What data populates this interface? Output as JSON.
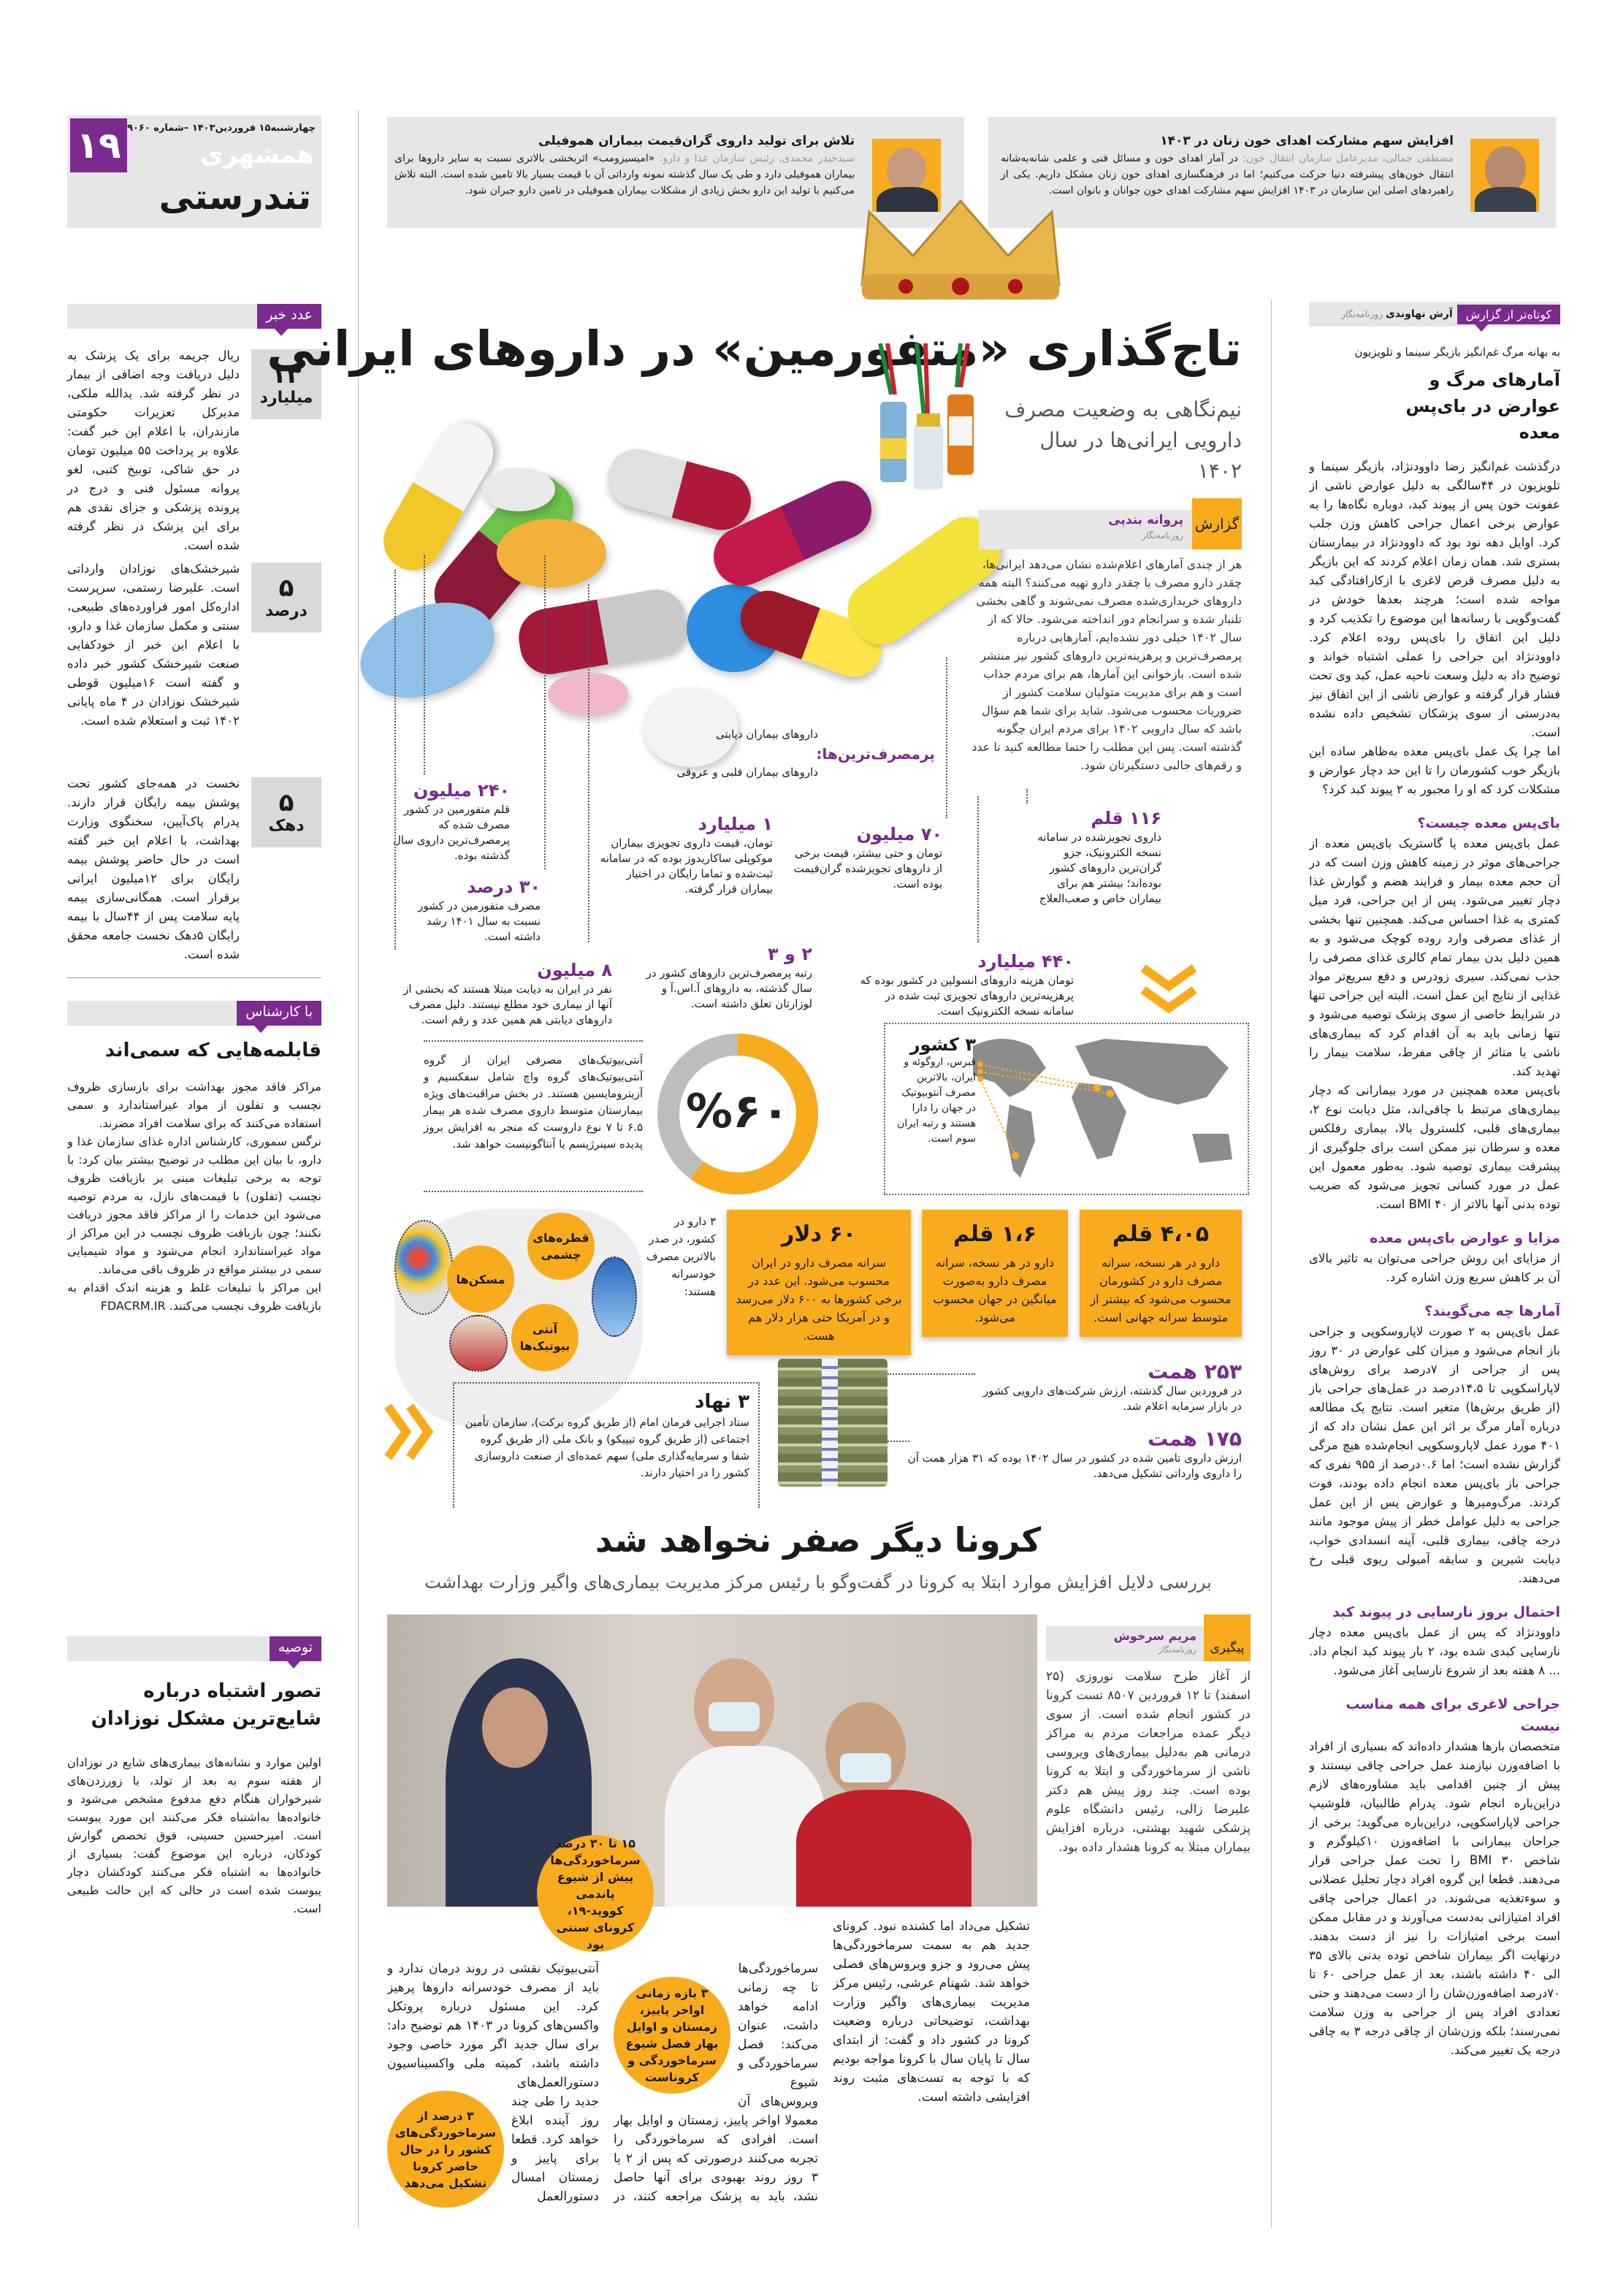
{
  "header": {
    "page_number": "۱۹",
    "date_issue": "چهارشنبه۱۵ فروردین۱۴۰۳ –شماره ۹۰۶۰",
    "logo": "همشهری",
    "section": "تندرستی",
    "accent_purple": "#7b2a8e",
    "accent_orange": "#f8ab1c"
  },
  "quotes": [
    {
      "title": "تلاش برای تولید داروی گران‌قیمت بیماران هموفیلی",
      "speaker": "سیدحیدر محمدی، رئیس سازمان غذا و دارو:",
      "text": "«امیسیزومب» اثربخشی بالاتری نسبت به سایر داروها برای بیماران هموفیلی دارد و طی یک سال گذشته نمونه وارداتی آن با قیمت بسیار بالا تامین شده است. البته تلاش می‌کنیم با تولید این دارو بخش زیادی از مشکلات بیماران هموفیلی در تامین دارو جبران شود."
    },
    {
      "title": "افزایش سهم مشارکت اهدای خون زنان در ۱۴۰۳",
      "speaker": "مصطفی جمالی، مدیرعامل سازمان انتقال خون:",
      "text": "در آمار اهدای خون و مسائل فنی و علمی شانه‌به‌شانه انتقال خون‌های پیشرفته دنیا حرکت می‌کنیم؛ اما در فرهنگسازی اهدای خون زنان مشکل داریم. یکی از راهبردهای اصلی این سازمان در ۱۴۰۳ افزایش سهم مشارکت اهدای خون جوانان و بانوان است."
    }
  ],
  "left": {
    "numbers_label": "عدد خبر",
    "numbers": [
      {
        "num": "۱۳",
        "unit": "میلیارد",
        "text": "ریال جریمه برای یک پزشک به دلیل دریافت وجه اضافی از بیمار در نظر گرفته شد. یدالله ملکی، مدیرکل تعزیرات حکومتی مازندران، با اعلام این خبر گفت: علاوه بر پرداخت ۵۵ میلیون تومان در حق شاکی، توبیخ کتبی، لغو پروانه مسئول فنی و درج در پرونده پزشکی و جزای نقدی هم برای این پزشک در نظر گرفته شده است."
      },
      {
        "num": "۵",
        "unit": "درصد",
        "text": "شیرخشک‌های نوزادان وارداتی است. علیرضا رستمی، سرپرست اداره‌کل امور فراورده‌های طبیعی، سنتی و مکمل سازمان غذا و دارو، با اعلام این خبر از خودکفایی صنعت شیرخشک کشور خبر داده و گفته است ۱۶میلیون قوطی شیرخشک نوزادان در ۴ ماه پایانی ۱۴۰۲ ثبت و استعلام شده است."
      },
      {
        "num": "۵",
        "unit": "دهک",
        "text": "نخست در همه‌جای کشور تحت پوشش بیمه رایگان قرار دارند. پدرام پاک‌آیین، سخنگوی وزارت بهداشت، با اعلام این خبر گفته است در حال حاضر پوشش بیمه رایگان برای ۱۲میلیون ایرانی برقرار است. همگانی‌سازی بیمه پایه سلامت پس از ۴۴سال با بیمه رایگان ۵دهک نخست جامعه محقق شده است."
      }
    ],
    "expert": {
      "label": "با کارشناس",
      "title": "قابلمه‌هایی که سمی‌اند",
      "paragraphs": [
        "مراکز فاقد مجوز بهداشت برای بازسازی ظروف نچسب و تفلون از مواد غیراستاندارد و سمی استفاده می‌کنند که برای سلامت افراد مضرند.",
        "نرگس سموری، کارشناس اداره غذای سازمان غذا و دارو، با بیان این مطلب در توضیح بیشتر بیان کرد: با توجه به برخی تبلیغات مبنی بر بازیافت ظروف نچسب (تفلون) با قیمت‌های نازل، به مردم توصیه می‌شود این خدمات را از مراکز فاقد مجوز دریافت نکنند؛ چون بازیافت ظروف نچسب در این مراکز از مواد غیراستاندارد انجام می‌شود و مواد شیمیایی سمی در بیشتر مواقع در ظروف باقی می‌ماند.",
        "این مراکز با تبلیغات غلط و هزینه اندک اقدام به بازیافت ظروف نچسب می‌کنند. FDACRM.IR"
      ]
    },
    "advice": {
      "label": "توصیه",
      "title": "تصور اشتباه درباره شایع‌ترین مشکل نوزادان",
      "paragraphs": [
        "اولین موارد و نشانه‌های بیماری‌های شایع در نوزادان از هفته سوم به بعد از تولد، با زورزدن‌های شیرخواران هنگام دفع مدفوع مشخص می‌شود و خانواده‌ها به‌اشتباه فکر می‌کنند این مورد یبوست است. امیرحسین حسینی، فوق تخصص گوارش کودکان، درباره این موضوع گفت: بسیاری از خانواده‌ها به اشتباه فکر می‌کنند کودکشان دچار یبوست شده است در حالی که این حالت طبیعی است."
      ]
    }
  },
  "main": {
    "title": "تاج‌گذاری «متفورمین» در داروهای ایرانی",
    "subtitle": "نیم‌نگاهی به وضعیت مصرف دارویی ایرانی‌ها در سال ۱۴۰۲",
    "report_label": "گزارش",
    "author": "پروانه بندپی",
    "author_role": "روزنامه‌نگار",
    "intro": "هر از چندی آمارهای اعلام‌شده نشان می‌دهد ایرانی‌ها، چقدر دارو مصرف یا چقدر دارو تهیه می‌کنند؟ البته همه داروهای خریداری‌شده مصرف نمی‌شوند و گاهی بخشی تلنبار شده و سرانجام دور انداخته می‌شود. حالا که از سال ۱۴۰۲ خیلی دور نشده‌ایم، آمارهایی درباره پرمصرف‌ترین و پرهزینه‌ترین داروهای کشور نیز منتشر شده است. بازخوانی این آمارها، هم برای مردم جذاب است و هم برای مدیریت متولیان سلامت کشور از ضروریات محسوب می‌شود. شاید برای شما هم سؤال باشد که سال دارویی ۱۴۰۲ برای مردم ایران چگونه گذشته است. پس این مطلب را حتما مطالعه کنید تا عدد و رقم‌های جالبی دستگیرتان شود.",
    "most_used": {
      "label": "پرمصرف‌ترین‌ها:",
      "items": [
        "داروهای بیماران دیابتی",
        "داروهای بیماران قلبی و عروقی"
      ]
    },
    "stats": {
      "s240": {
        "num": "۲۴۰ میلیون",
        "text": "قلم متفورمین در کشور مصرف شده که پرمصرف‌ترین داروی سال گذشته بوده."
      },
      "s30": {
        "num": "۳۰ درصد",
        "text": "مصرف متفورمین در کشور نسبت به سال ۱۴۰۱ رشد داشته است."
      },
      "s1b": {
        "num": "۱ میلیارد",
        "text": "تومان، قیمت داروی تجویزی بیماران موکوپلی ساکاریدوز بوده که در سامانه ثبت‌شده و تماما رایگان در اختیار بیماران قرار گرفته."
      },
      "s70": {
        "num": "۷۰ میلیون",
        "text": "تومان و حتی بیشتر، قیمت برخی از داروهای تجویزشده گران‌قیمت بوده است."
      },
      "s116": {
        "num": "۱۱۶ قلم",
        "text": "داروی تجویزشده در سامانه نسخه الکترونیک، جزو گران‌ترین داروهای کشور بوده‌اند؛ بیشتر هم برای بیماران خاص و صعب‌العلاج"
      },
      "s8": {
        "num": "۸ میلیون",
        "text": "نفر در ایران به دیابت مبتلا هستند که بخشی از آنها از بیماری خود مطلع نیستند. دلیل مصرف داروهای دیابتی هم همین عدد و رقم است."
      },
      "s23": {
        "num": "۲ و ۳",
        "text": "رتبه پرمصرف‌ترین داروهای کشور در سال گذشته، به داروهای آ.اس.آ و لوزارتان تعلق داشته است."
      },
      "s440": {
        "num": "۴۴۰ میلیارد",
        "text": "تومان هزینه داروهای انسولین در کشور بوده که پرهزینه‌ترین داروهای تجویزی ثبت شده در سامانه نسخه الکترونیک است."
      }
    },
    "antibiotic": {
      "percent_label": "%۶۰",
      "percent": 60,
      "text": "آنتی‌بیوتیک‌های مصرفی ایران از گروه آنتی‌بیوتیک‌های گروه واچ شامل سفکسیم و آزیترومایسین هستند. در بخش مراقبت‌های ویژه بیمارستان متوسط داروی مصرف شده هر بیمار ۶.۵ تا ۷ نوع داروست که منجر به افزایش بروز پدیده سینرژیسم یا آنتاگونیست خواهد شد."
    },
    "countries": {
      "num": "۳ کشور",
      "text": "قبرس، اروگوئه و ایران، بالاترین مصرف آنتوبیوتیک در جهان را دارا هستند و رتبه ایران سوم است."
    },
    "self_medication": {
      "text": "۳ دارو در کشور، در صدر بالاترین مصرف خودسرانه هستند:",
      "items": [
        "مسکن‌ها",
        "قطره‌های چشمی",
        "آنتی بیوتیک‌ها"
      ]
    },
    "boxes": [
      {
        "num": "۴،۰۵ قلم",
        "text": "دارو در هر نسخه، سرانه مصرف دارو در کشورمان محسوب می‌شود که بیشتر از متوسط سرانه جهانی است."
      },
      {
        "num": "۱،۶ قلم",
        "text": "دارو در هر نسخه، سرانه مصرف دارو به‌صورت میانگین در جهان محسوب می‌شود."
      },
      {
        "num": "۶۰ دلار",
        "text": "سرانه مصرف دارو در ایران محسوب می‌شود. این عدد در برخی کشورها به ۶۰۰ دلار می‌رسد و در آمریکا حتی هزار دلار هم هست."
      }
    ],
    "institutions": {
      "num": "۳ نهاد",
      "text": "ستاد اجرایی فرمان امام (از طریق گروه برکت)، سازمان تأمین اجتماعی (از طریق گروه تیپیکو) و بانک ملی (از طریق گروه شفا و سرمایه‌گذاری ملی) سهم عمده‌ای از صنعت داروسازی کشور را در اختیار دارند."
    },
    "s253": {
      "num": "۲۵۳ همت",
      "text": "در فروردین سال گذشته، ارزش شرکت‌های دارویی کشور در بازار سرمایه اعلام شد."
    },
    "s175": {
      "num": "۱۷۵ همت",
      "text": "ارزش داروی تامین شده در کشور در سال ۱۴۰۲ بوده که ۳۱ هزار همت آن را داروی وارداتی تشکیل می‌دهد."
    }
  },
  "right": {
    "label": "کوتاه‌تر از گزارش",
    "author": "آرش نهاوندی",
    "author_role": "روزنامه‌نگار",
    "kicker": "به بهانه مرگ غم‌انگیز بازیگر سینما و تلویزیون",
    "title": "آمارهای مرگ و عوارض در بای‌پس معده",
    "intro": [
      "درگذشت غم‌انگیز رضا داوودنژاد، بازیگر سینما و تلویزیون در ۴۴سالگی به دلیل عوارض ناشی از عفونت خون پس از پیوند کبد، دوباره نگاه‌ها را به عوارض برخی اعمال جراحی کاهش وزن جلب کرد. اوایل دهه نود بود که داوودنژاد در بیمارستان بستری شد. همان زمان اعلام کردند که این بازیگر به دلیل مصرف قرص لاغری با ازکارافتادگی کبد مواجه شده است؛ هرچند بعدها خودش در گفت‌وگویی با رسانه‌ها این موضوع را تکذیب کرد و دلیل این اتفاق را بای‌پس روده اعلام کرد. داوودنژاد این جراحی را عملی اشتباه خواند و توضیح داد به دلیل وسعت ناحیه عمل، کبد وی تحت فشار قرار گرفته و عوارض ناشی از این اتفاق نیز به‌درستی از سوی پزشکان تشخیص داده نشده است.",
      "اما چرا یک عمل بای‌پس معده به‌ظاهر ساده این بازیگر خوب کشورمان را تا این حد دچار عوارض و مشکلات کرد که او را مجبور به ۲ پیوند کبد کرد؟"
    ],
    "sections": [
      {
        "heading": "بای‌پس معده چیست؟",
        "paragraphs": [
          "عمل بای‌پس معده یا گاستریک بای‌پس معده از جراحی‌های موثر در زمینه کاهش وزن است که در آن حجم معده بیمار و فرایند هضم و گوارش غذا دچار تغییر می‌شود. پس از این جراحی، فرد میل کمتری به غذا احساس می‌کند. همچنین تنها بخشی از غذای مصرفی وارد روده کوچک می‌شود و به همین دلیل بدن بیمار تمام کالری غذای مصرفی را جذب نمی‌کند. سیری زودرس و دفع سریع‌تر مواد غذایی از نتایج این عمل است. البته این جراحی تنها در شرایط خاصی از سوی پزشک توصیه می‌شود و تنها زمانی باید به آن اقدام کرد که بیماری‌های ناشی یا متاثر از چاقی مفرط، سلامت بیمار را تهدید کند.",
          "بای‌پس معده همچنین در مورد بیمارانی که دچار بیماری‌های مرتبط با چاقی‌اند، مثل دیابت نوع ۲، بیماری‌های قلبی، کلسترول بالا، بیماری رفلکس معده و سرطان نیز ممکن است برای جلوگیری از پیشرفت بیماری توصیه شود. به‌طور معمول این عمل در مورد کسانی تجویز می‌شود که ضریب توده بدنی آنها بالاتر از ۴۰ BMI است."
        ]
      },
      {
        "heading": "مزایا و عوارض بای‌پس معده",
        "paragraphs": [
          "از مزایای این روش جراحی می‌توان به تاثیر بالای آن بر کاهش سریع وزن اشاره کرد."
        ]
      },
      {
        "heading": "آمارها چه می‌گویند؟",
        "paragraphs": [
          "عمل بای‌پس به ۲ صورت لاپاروسکوپی و جراحی باز انجام می‌شود و میزان کلی عوارض در ۳۰ روز پس از جراحی از ۷درصد برای روش‌های لاپاراسکوپی تا ۱۴،۵درصد در عمل‌های جراحی باز (از طریق برش‌ها) متغیر است. نتایج یک مطالعه درباره آمار مرگ بر اثر این عمل نشان داد که از ۴۰۱ مورد عمل لاپاروسکوپی انجام‌شده هیچ مرگی گزارش نشده است؛ اما ۰.۶درصد از ۹۵۵ نفری که جراحی باز بای‌پس معده انجام داده بودند، فوت کردند. مرگ‌ومیرها و عوارض پس از این عمل جراحی به دلیل عوامل خطر از پیش موجود مانند درجه چاقی، بیماری قلبی، آپنه انسدادی خواب، دیابت شیرین و سابقه آمبولی ریوی قبلی رخ می‌دهند."
        ]
      },
      {
        "heading": "احتمال بروز نارسایی در پیوند کبد",
        "paragraphs": [
          "داوودنژاد که پس از عمل بای‌پس معده دچار نارسایی کبدی شده بود، ۲ بار پیوند کبد انجام داد. ... ۸ هفته بعد از شروع نارسایی آغاز می‌شود."
        ]
      },
      {
        "heading": "جراحی لاغری برای همه مناسب نیست",
        "paragraphs": [
          "متخصصان بارها هشدار داده‌اند که بسیاری از افراد با اضافه‌وزن نیازمند عمل جراحی چاقی نیستند و پیش از چنین اقدامی باید مشاوره‌های لازم دراین‌باره انجام شود. پدرام طالبیان، فلوشیپ جراحی لاپاراسکوپی، دراین‌باره می‌گوید: برخی از جراحان بیمارانی با اضافه‌وزن ۱۰کیلوگرم و شاخص ۳۰ BMI را تحت عمل جراحی قرار می‌دهند. قطعا این گروه افراد دچار تحلیل عضلانی و سوءتغذیه می‌شوند. در اعمال جراحی چاقی افراد امتیازاتی به‌دست می‌آورند و در مقابل ممکن است برخی امتیازات را نیز از دست بدهند. درنهایت اگر بیماران شاخص توده بدنی بالای ۳۵ الی ۴۰ داشته باشند، بعد از عمل جراحی ۶۰ تا ۷۰درصد اضافه‌وزن‌شان را از دست می‌دهند و حتی تعدادی افراد پس از جراحی به وزن سلامت نمی‌رسند؛ بلکه وزن‌شان از چاقی درجه ۳ به چاقی درجه یک تغییر می‌کند."
        ]
      }
    ]
  },
  "corona": {
    "title": "کرونا دیگر صفر نخواهد شد",
    "subtitle": "بررسی دلایل افزایش موارد ابتلا به کرونا در گفت‌وگو با رئیس مرکز مدیریت بیماری‌های واگیر وزارت بهداشت",
    "label": "پیگیری",
    "author": "مریم سرخوش",
    "author_role": "روزنامه‌نگار",
    "intro": "از آغاز طرح سلامت نوروزی (۲۵ اسفند) تا ۱۲ فروردین ۸۵۰۷ تست کرونا در کشور انجام شده است. از سوی دیگر عمده مراجعات مردم به مراکز درمانی هم به‌دلیل بیماری‌های ویروسی ناشی از سرماخوردگی و ابتلا به کرونا بوده است. چند روز پیش هم دکتر علیرضا زالی، رئیس دانشگاه علوم پزشکی شهید بهشتی، درباره افزایش بیماران مبتلا به کرونا هشدار داده بود.",
    "callouts": [
      "۱۵ تا ۳۰ درصد سرماخوردگی‌ها پیش از شیوع پاندمی کووید-۱۹، کرونای سنتی بود",
      "۳ بازه زمانی اواخر پاییز، زمستان و اوایل بهار فصل شیوع سرماخوردگی و کروناست",
      "۳ درصد از سرماخوردگی‌های کشور را در حال حاضر کرونا تشکیل می‌دهد"
    ],
    "columns": [
      "تشکیل می‌داد اما کشنده نبود. کرونای جدید هم به سمت سرماخوردگی‌ها پیش می‌رود و جزو ویروس‌های فصلی خواهد شد. شهنام عرشی، رئیس مرکز مدیریت بیماری‌های واگیر وزارت بهداشت، توضیحاتی درباره وضعیت کرونا در کشور داد و گفت: از ابتدای سال تا پایان سال با کرونا مواجه بودیم که با توجه به تست‌های مثبت روند افزایشی داشته است.",
      "سرماخوردگی‌ها تا چه زمانی ادامه خواهد داشت، عنوان می‌کند: فصل سرماخوردگی و شیوع ویروس‌های آن معمولا اواخر پاییز، زمستان و اوایل بهار است. افرادی که سرماخوردگی را تجربه می‌کنند درصورتی که پس از ۲ یا ۳ روز روند بهبودی برای آنها حاصل نشد، باید به پزشک مراجعه کنند، در طول این مدت از ماسک استفاده کنند و بکوشند تماس کمتری با اطرافیان داشته باشند. به تاکید این مسئول، در زمان ابتلا به سرماخوردگی مصرف خودسرانه دارو و",
      "آنتی‌بیوتیک نقشی در روند درمان ندارد و باید از مصرف خودسرانه داروها پرهیز کرد. این مسئول درباره پروتکل واکسن‌های کرونا در ۱۴۰۳ هم توضیح داد: برای سال جدید اگر مورد خاصی وجود داشته باشد، کمیته ملی واکسیناسیون دستورالعمل‌های جدید را طی چند روز آینده ابلاغ خواهد کرد. قطعا برای پاییز و زمستان امسال دستورالعمل جدید خواهیم داشت اما در حال حاضر همان پروتکل‌های قبلی به قوت خود باقی است."
    ]
  }
}
